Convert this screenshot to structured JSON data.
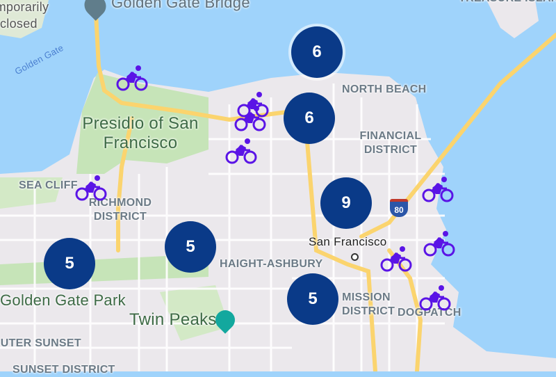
{
  "map": {
    "colors": {
      "water": "#9fd3fb",
      "land": "#ebe8ec",
      "park": "#c6e4b8",
      "highway": "#fbd46e",
      "cluster": "#0a3a88",
      "bike": "#5a14e6"
    },
    "labels": {
      "poi_bridge": "Golden Gate Bridge",
      "closed_line1": "Temporarily",
      "closed_line2": "closed",
      "treasure_island": "TREASURE ISLAND",
      "golden_gate_water": "Golden Gate",
      "north_beach": "NORTH BEACH",
      "presidio": "Presidio of San Francisco",
      "financial": "FINANCIAL DISTRICT",
      "sea_cliff": "SEA CLIFF",
      "richmond": "RICHMOND DISTRICT",
      "san_francisco": "San Francisco",
      "haight": "HAIGHT-ASHBURY",
      "gg_park": "Golden Gate Park",
      "twin_peaks": "Twin Peaks",
      "mission": "MISSION DISTRICT",
      "dogpatch": "DOGPATCH",
      "outer_sunset": "OUTER SUNSET",
      "sunset": "SUNSET DISTRICT",
      "interstate": "80"
    },
    "clusters": [
      {
        "count": "6"
      },
      {
        "count": "6"
      },
      {
        "count": "9"
      },
      {
        "count": "5"
      },
      {
        "count": "5"
      },
      {
        "count": "5"
      }
    ],
    "bike_marker_icon": "bicycle-icon"
  }
}
